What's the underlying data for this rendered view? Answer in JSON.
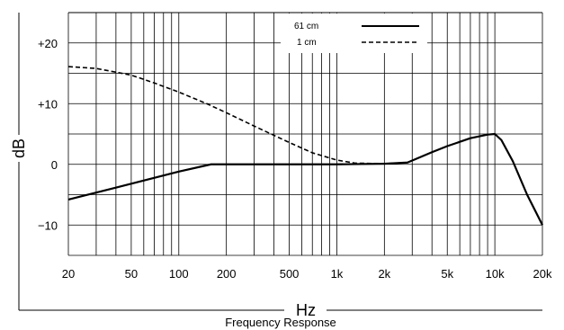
{
  "chart_data": {
    "type": "line",
    "title": "",
    "caption": "Frequency Response",
    "xlabel": "Hz",
    "ylabel": "dB",
    "x_scale": "log",
    "xlim": [
      20,
      20000
    ],
    "ylim": [
      -15,
      25
    ],
    "grid": true,
    "legend_position": "top-center",
    "x_tick_values": [
      20,
      50,
      100,
      200,
      500,
      1000,
      2000,
      5000,
      10000,
      20000
    ],
    "x_tick_labels": [
      "20",
      "50",
      "100",
      "200",
      "500",
      "1k",
      "2k",
      "5k",
      "10k",
      "20k"
    ],
    "y_tick_values": [
      20,
      10,
      0,
      -10
    ],
    "y_tick_labels": [
      "+20",
      "+10",
      "0",
      "−10"
    ],
    "series": [
      {
        "name": "61 cm",
        "style": "solid",
        "color": "#000000",
        "x": [
          20,
          50,
          100,
          160,
          200,
          500,
          1000,
          2000,
          2800,
          4000,
          5000,
          7000,
          9000,
          10000,
          11000,
          13000,
          16000,
          20000
        ],
        "y": [
          -5.8,
          -3.2,
          -1.2,
          0,
          0,
          0,
          0,
          0.1,
          0.3,
          2.0,
          3.0,
          4.3,
          4.9,
          5.0,
          4.0,
          0.5,
          -5.0,
          -10.0
        ]
      },
      {
        "name": "1 cm",
        "style": "dashed",
        "color": "#000000",
        "x": [
          20,
          30,
          50,
          70,
          100,
          150,
          200,
          300,
          500,
          700,
          1000,
          1300,
          2000,
          2800
        ],
        "y": [
          16.1,
          15.8,
          14.7,
          13.4,
          11.9,
          10.0,
          8.5,
          6.3,
          3.6,
          1.9,
          0.7,
          0.2,
          0.1,
          0.3
        ]
      }
    ]
  }
}
